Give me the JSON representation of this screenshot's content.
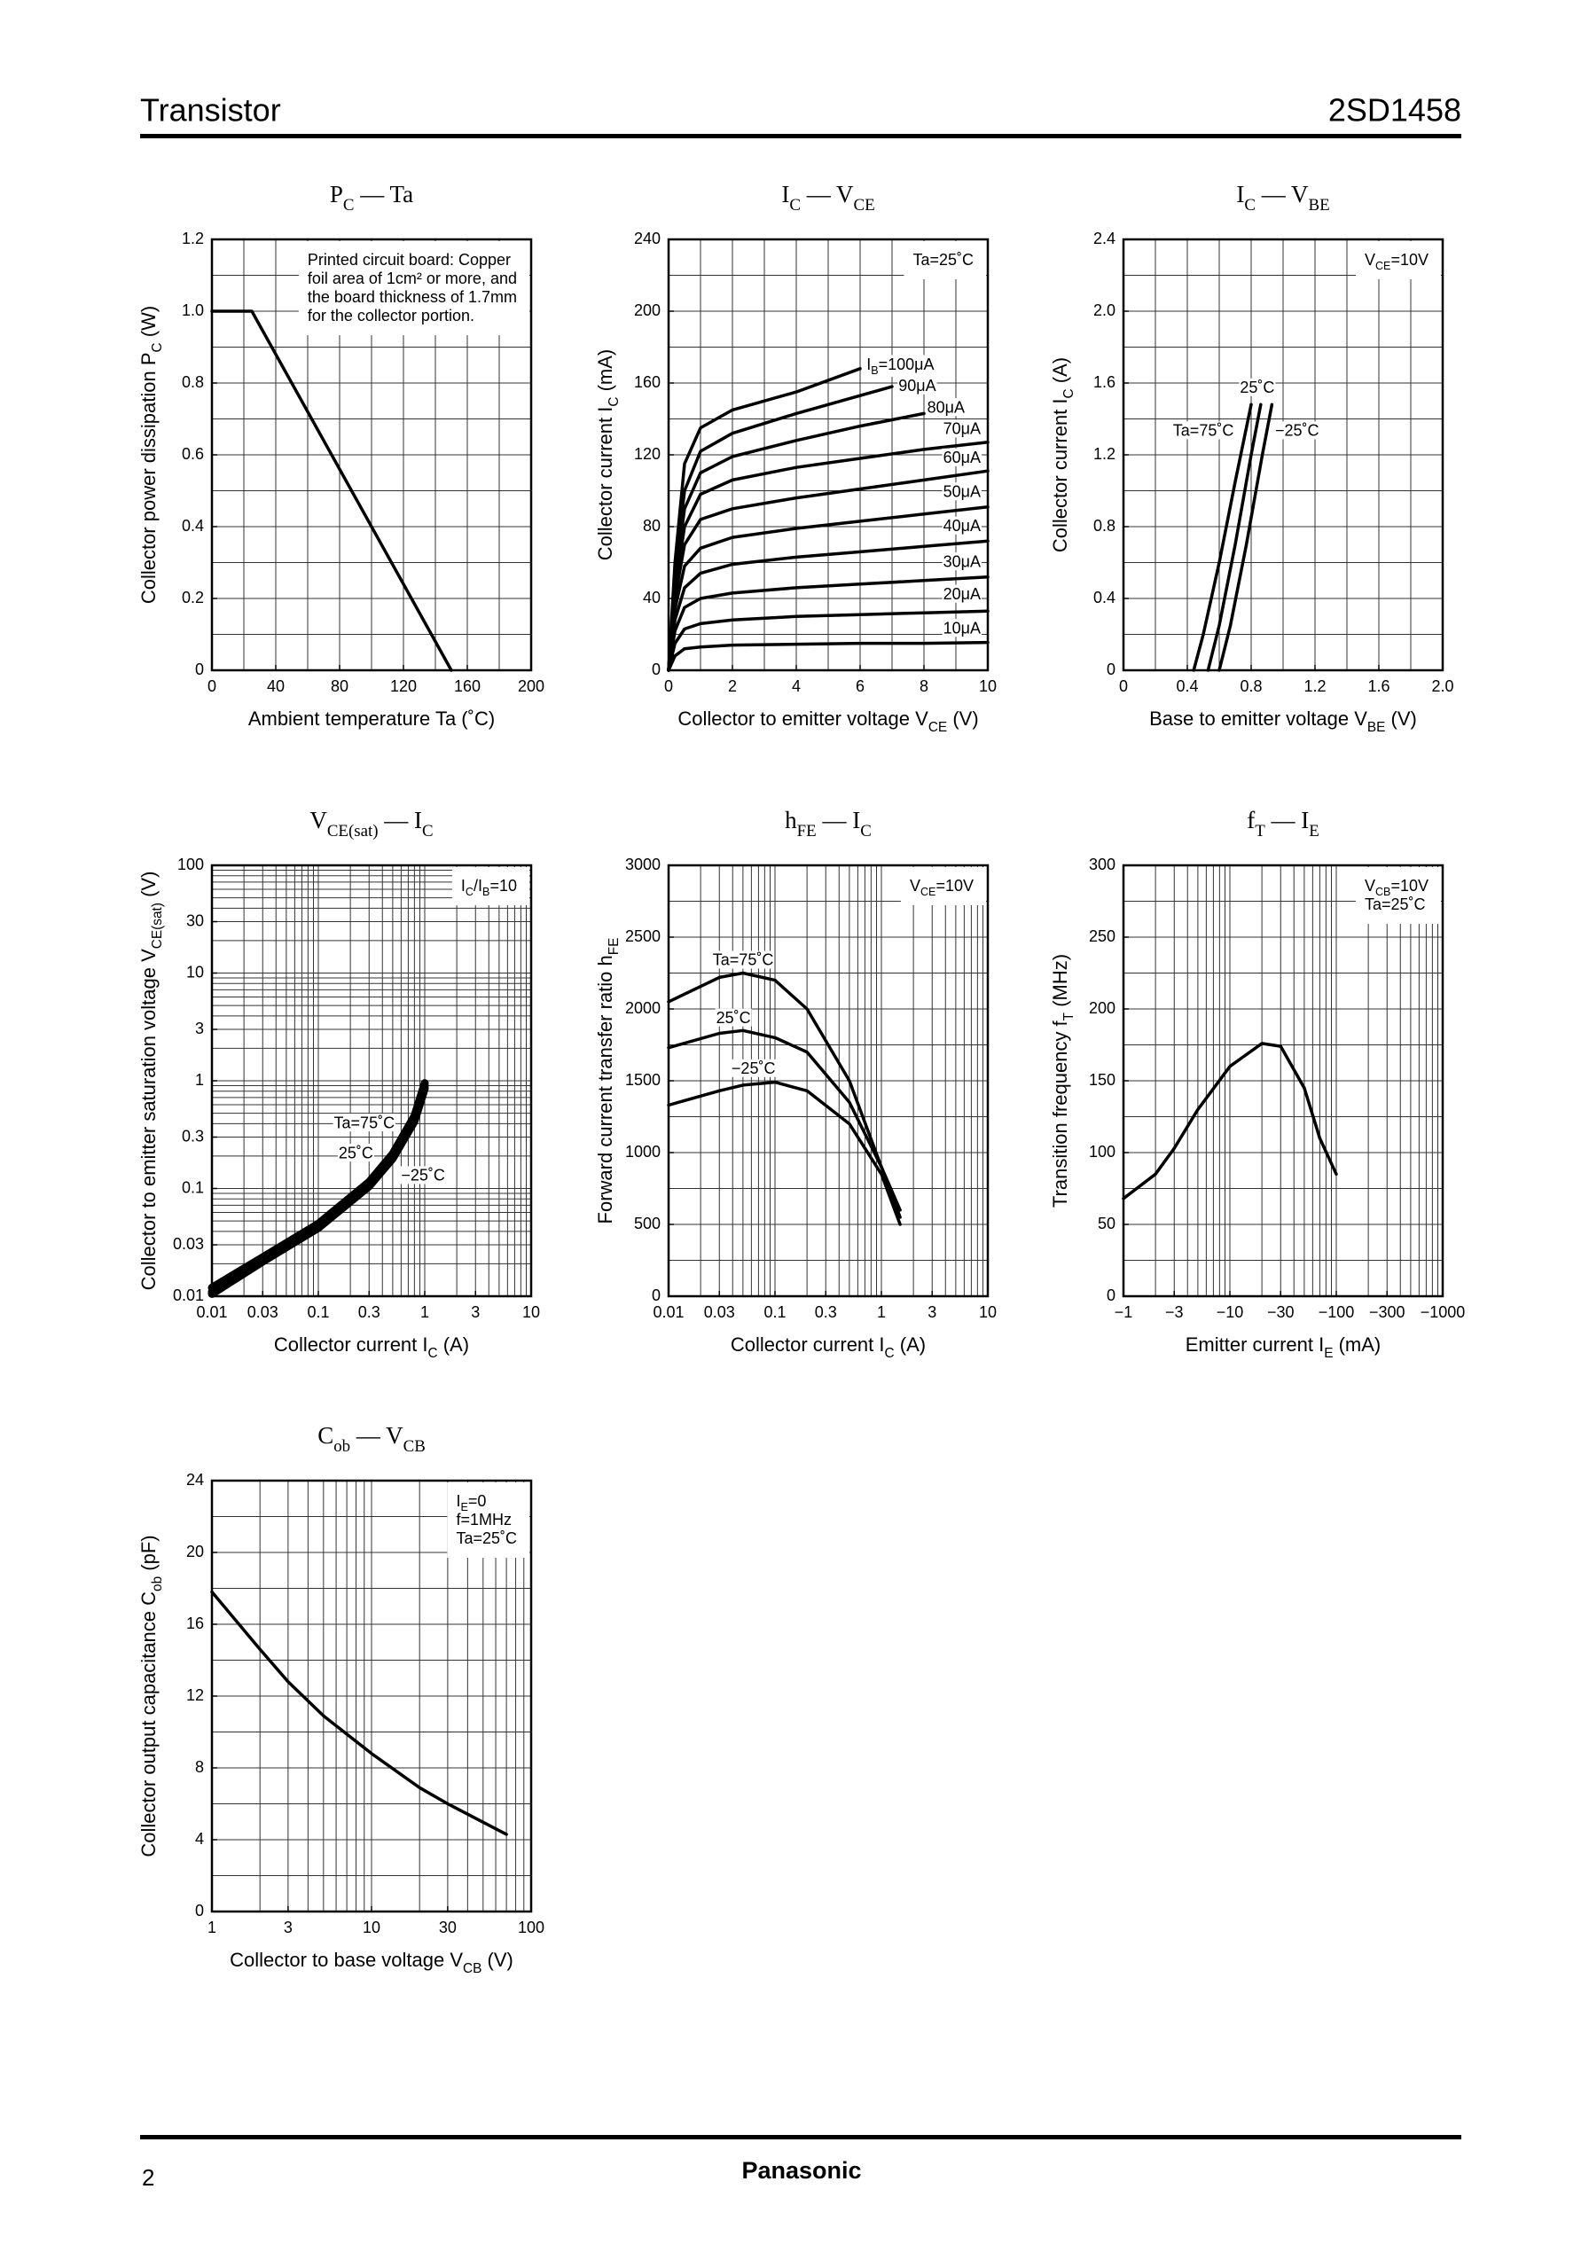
{
  "header": {
    "left": "Transistor",
    "right": "2SD1458"
  },
  "footer": {
    "page": "2",
    "brand": "Panasonic"
  },
  "chart_data": [
    {
      "type": "line",
      "title": [
        "P",
        "C",
        " — Ta"
      ],
      "x_label": [
        "Ambient temperature   Ta   (˚C)"
      ],
      "y_label": [
        "Collector power dissipation   P",
        "C",
        "   (W)"
      ],
      "xlim": [
        0,
        200
      ],
      "xticks": [
        0,
        40,
        80,
        120,
        160,
        200
      ],
      "ylim": [
        0,
        1.2
      ],
      "yticks": [
        0,
        0.2,
        0.4,
        0.6,
        0.8,
        {
          "value": 1,
          "label": "1.0"
        },
        1.2
      ],
      "xgrid": [
        0,
        20,
        40,
        60,
        80,
        100,
        120,
        140,
        160,
        180,
        200
      ],
      "ygrid": [
        0,
        0.1,
        0.2,
        0.3,
        0.4,
        0.5,
        0.6,
        0.7,
        0.8,
        0.9,
        1,
        1.1,
        1.2
      ],
      "note": [
        [
          "Printed circuit board: Copper"
        ],
        [
          "foil area of 1cm² or more, and"
        ],
        [
          "the board thickness of 1.7mm"
        ],
        [
          "for the collector portion."
        ]
      ],
      "series": [
        {
          "color": "#000000",
          "x": [
            0,
            25,
            150
          ],
          "values": [
            1,
            1,
            0
          ]
        }
      ]
    },
    {
      "type": "line",
      "title": [
        "I",
        "C",
        " — V",
        "CE"
      ],
      "x_label": [
        "Collector to emitter voltage   V",
        "CE",
        "   (V)"
      ],
      "y_label": [
        "Collector current   I",
        "C",
        "   (mA)"
      ],
      "xlim": [
        0,
        10
      ],
      "xticks": [
        0,
        2,
        4,
        6,
        8,
        10
      ],
      "ylim": [
        0,
        240
      ],
      "yticks": [
        0,
        40,
        80,
        120,
        160,
        200,
        240
      ],
      "xgrid": [
        0,
        1,
        2,
        3,
        4,
        5,
        6,
        7,
        8,
        9,
        10
      ],
      "ygrid": [
        0,
        20,
        40,
        60,
        80,
        100,
        120,
        140,
        160,
        180,
        200,
        220,
        240
      ],
      "note": [
        [
          "Ta=25˚C"
        ]
      ],
      "series": [
        {
          "name": [
            "I",
            "B",
            "=100μA"
          ],
          "color": "#000000",
          "x": [
            0,
            0.2,
            0.5,
            1,
            2,
            4,
            6
          ],
          "values": [
            0,
            60,
            115,
            135,
            145,
            155,
            168
          ]
        },
        {
          "name": [
            "90μA"
          ],
          "color": "#000000",
          "x": [
            0,
            0.2,
            0.5,
            1,
            2,
            4,
            7
          ],
          "values": [
            0,
            55,
            100,
            122,
            132,
            143,
            158
          ]
        },
        {
          "name": [
            "80μA"
          ],
          "color": "#000000",
          "x": [
            0,
            0.2,
            0.5,
            1,
            2,
            4,
            6,
            8
          ],
          "values": [
            0,
            50,
            90,
            110,
            119,
            128,
            136,
            143
          ]
        },
        {
          "name": [
            "70μA"
          ],
          "color": "#000000",
          "x": [
            0,
            0.2,
            0.5,
            1,
            2,
            4,
            6,
            8,
            10
          ],
          "values": [
            0,
            45,
            80,
            98,
            106,
            113,
            118,
            123,
            127
          ]
        },
        {
          "name": [
            "60μA"
          ],
          "color": "#000000",
          "x": [
            0,
            0.2,
            0.5,
            1,
            2,
            4,
            6,
            8,
            10
          ],
          "values": [
            0,
            40,
            70,
            84,
            90,
            96,
            101,
            106,
            111
          ]
        },
        {
          "name": [
            "50μA"
          ],
          "color": "#000000",
          "x": [
            0,
            0.2,
            0.5,
            1,
            2,
            4,
            6,
            8,
            10
          ],
          "values": [
            0,
            34,
            58,
            68,
            74,
            79,
            83,
            87,
            91
          ]
        },
        {
          "name": [
            "40μA"
          ],
          "color": "#000000",
          "x": [
            0,
            0.2,
            0.5,
            1,
            2,
            4,
            6,
            8,
            10
          ],
          "values": [
            0,
            28,
            46,
            54,
            59,
            63,
            66,
            69,
            72
          ]
        },
        {
          "name": [
            "30μA"
          ],
          "color": "#000000",
          "x": [
            0,
            0.2,
            0.5,
            1,
            2,
            4,
            6,
            8,
            10
          ],
          "values": [
            0,
            22,
            35,
            40,
            43,
            46,
            48,
            50,
            52
          ]
        },
        {
          "name": [
            "20μA"
          ],
          "color": "#000000",
          "x": [
            0,
            0.2,
            0.5,
            1,
            2,
            4,
            6,
            8,
            10
          ],
          "values": [
            0,
            15,
            23,
            26,
            28,
            30,
            31,
            32,
            33
          ]
        },
        {
          "name": [
            "10μA"
          ],
          "color": "#000000",
          "x": [
            0,
            0.2,
            0.5,
            1,
            2,
            4,
            6,
            8,
            10
          ],
          "values": [
            0,
            8,
            12,
            13,
            14,
            14.5,
            15,
            15,
            15.5
          ]
        }
      ]
    },
    {
      "type": "line",
      "title": [
        "I",
        "C",
        " — V",
        "BE"
      ],
      "x_label": [
        "Base to emitter voltage   V",
        "BE",
        "   (V)"
      ],
      "y_label": [
        "Collector current   I",
        "C",
        "   (A)"
      ],
      "xlim": [
        0,
        2
      ],
      "xticks": [
        0,
        0.4,
        0.8,
        1.2,
        1.6,
        {
          "value": 2,
          "label": "2.0"
        }
      ],
      "ylim": [
        0,
        2.4
      ],
      "yticks": [
        0,
        0.4,
        0.8,
        1.2,
        1.6,
        {
          "value": 2,
          "label": "2.0"
        },
        2.4
      ],
      "xgrid": [
        0,
        0.2,
        0.4,
        0.6,
        0.8,
        1,
        1.2,
        1.4,
        1.6,
        1.8,
        2
      ],
      "ygrid": [
        0,
        0.2,
        0.4,
        0.6,
        0.8,
        1,
        1.2,
        1.4,
        1.6,
        1.8,
        2,
        2.2,
        2.4
      ],
      "note": [
        [
          "V",
          "CE",
          "=10V"
        ]
      ],
      "series": [
        {
          "name": [
            "Ta=75˚C"
          ],
          "color": "#000000",
          "x": [
            0.44,
            0.5,
            0.6,
            0.7,
            0.8
          ],
          "values": [
            0,
            0.2,
            0.6,
            1.05,
            1.48
          ]
        },
        {
          "name": [
            "25˚C"
          ],
          "color": "#000000",
          "x": [
            0.53,
            0.6,
            0.7,
            0.8,
            0.86
          ],
          "values": [
            0,
            0.25,
            0.7,
            1.2,
            1.48
          ]
        },
        {
          "name": [
            "−25˚C"
          ],
          "color": "#000000",
          "x": [
            0.6,
            0.67,
            0.77,
            0.87,
            0.93
          ],
          "values": [
            0,
            0.25,
            0.7,
            1.2,
            1.48
          ]
        }
      ]
    },
    {
      "type": "line",
      "title": [
        "V",
        "CE(sat)",
        " — I",
        "C"
      ],
      "x_label": [
        "Collector current   I",
        "C",
        "   (A)"
      ],
      "y_label": [
        "Collector to emitter saturation voltage   V",
        "CE(sat)",
        "   (V)"
      ],
      "xlog": true,
      "ylog": true,
      "xlim": [
        0.01,
        10
      ],
      "xticks": [
        0.01,
        0.03,
        0.1,
        0.3,
        1,
        3,
        10
      ],
      "ylim": [
        0.01,
        100
      ],
      "yticks": [
        0.01,
        0.03,
        0.1,
        0.3,
        1,
        3,
        10,
        30,
        100
      ],
      "xgrid": [
        0.01,
        0.02,
        0.03,
        0.04,
        0.05,
        0.06,
        0.07,
        0.08,
        0.09,
        0.1,
        0.2,
        0.3,
        0.4,
        0.5,
        0.6,
        0.7,
        0.8,
        0.9,
        1,
        2,
        3,
        4,
        5,
        6,
        7,
        8,
        9,
        10
      ],
      "ygrid": [
        0.01,
        0.02,
        0.03,
        0.04,
        0.05,
        0.06,
        0.07,
        0.08,
        0.09,
        0.1,
        0.2,
        0.3,
        0.4,
        0.5,
        0.6,
        0.7,
        0.8,
        0.9,
        1,
        2,
        3,
        4,
        5,
        6,
        7,
        8,
        9,
        10,
        20,
        30,
        40,
        50,
        60,
        70,
        80,
        90,
        100
      ],
      "note": [
        [
          "I",
          "C",
          "/I",
          "B",
          "=10"
        ]
      ],
      "series": [
        {
          "name": [
            "Ta=75˚C"
          ],
          "color": "#000000",
          "x": [
            0.01,
            0.03,
            0.1,
            0.3,
            0.5,
            0.8,
            1
          ],
          "values": [
            0.012,
            0.023,
            0.047,
            0.115,
            0.21,
            0.47,
            0.95
          ]
        },
        {
          "name": [
            "25˚C"
          ],
          "color": "#000000",
          "x": [
            0.01,
            0.03,
            0.1,
            0.3,
            0.5,
            0.8,
            1
          ],
          "values": [
            0.011,
            0.022,
            0.045,
            0.11,
            0.2,
            0.45,
            0.9
          ]
        },
        {
          "name": [
            "−25˚C"
          ],
          "color": "#000000",
          "x": [
            0.01,
            0.03,
            0.1,
            0.3,
            0.5,
            0.8,
            1
          ],
          "values": [
            0.0105,
            0.021,
            0.043,
            0.105,
            0.19,
            0.42,
            0.85
          ]
        }
      ]
    },
    {
      "type": "line",
      "title": [
        "h",
        "FE",
        " — I",
        "C"
      ],
      "x_label": [
        "Collector current   I",
        "C",
        "   (A)"
      ],
      "y_label": [
        "Forward current transfer ratio   h",
        "FE"
      ],
      "xlog": true,
      "xlim": [
        0.01,
        10
      ],
      "xticks": [
        0.01,
        0.03,
        0.1,
        0.3,
        1,
        3,
        10
      ],
      "ylim": [
        0,
        3000
      ],
      "yticks": [
        0,
        500,
        1000,
        1500,
        2000,
        2500,
        3000
      ],
      "xgrid": [
        0.01,
        0.02,
        0.03,
        0.04,
        0.05,
        0.06,
        0.07,
        0.08,
        0.09,
        0.1,
        0.2,
        0.3,
        0.4,
        0.5,
        0.6,
        0.7,
        0.8,
        0.9,
        1,
        2,
        3,
        4,
        5,
        6,
        7,
        8,
        9,
        10
      ],
      "ygrid": [
        0,
        250,
        500,
        750,
        1000,
        1250,
        1500,
        1750,
        2000,
        2250,
        2500,
        2750,
        3000
      ],
      "note": [
        [
          "V",
          "CE",
          "=10V"
        ]
      ],
      "series": [
        {
          "name": [
            "Ta=75˚C"
          ],
          "color": "#000000",
          "x": [
            0.01,
            0.03,
            0.05,
            0.1,
            0.2,
            0.5,
            1,
            1.5
          ],
          "values": [
            2050,
            2220,
            2250,
            2200,
            2000,
            1500,
            900,
            550
          ]
        },
        {
          "name": [
            "25˚C"
          ],
          "color": "#000000",
          "x": [
            0.01,
            0.03,
            0.05,
            0.1,
            0.2,
            0.5,
            1,
            1.5
          ],
          "values": [
            1730,
            1830,
            1850,
            1800,
            1700,
            1350,
            900,
            600
          ]
        },
        {
          "name": [
            "−25˚C"
          ],
          "color": "#000000",
          "x": [
            0.01,
            0.03,
            0.05,
            0.1,
            0.2,
            0.5,
            1,
            1.5
          ],
          "values": [
            1330,
            1430,
            1470,
            1490,
            1430,
            1200,
            850,
            500
          ]
        }
      ]
    },
    {
      "type": "line",
      "title": [
        "f",
        "T",
        " — I",
        "E"
      ],
      "x_label": [
        "Emitter current   I",
        "E",
        "   (mA)"
      ],
      "y_label": [
        "Transition frequency   f",
        "T",
        "   (MHz)"
      ],
      "xlog": true,
      "xlim": [
        -1,
        -1000
      ],
      "xticks": [
        {
          "value": -1,
          "label": "−1"
        },
        {
          "value": -3,
          "label": "−3"
        },
        {
          "value": -10,
          "label": "−10"
        },
        {
          "value": -30,
          "label": "−30"
        },
        {
          "value": -100,
          "label": "−100"
        },
        {
          "value": -300,
          "label": "−300"
        },
        {
          "value": -1000,
          "label": "−1000"
        }
      ],
      "ylim": [
        0,
        300
      ],
      "yticks": [
        0,
        50,
        100,
        150,
        200,
        250,
        300
      ],
      "xgrid": [
        -1,
        -2,
        -3,
        -4,
        -5,
        -6,
        -7,
        -8,
        -9,
        -10,
        -20,
        -30,
        -40,
        -50,
        -60,
        -70,
        -80,
        -90,
        -100,
        -200,
        -300,
        -400,
        -500,
        -600,
        -700,
        -800,
        -900,
        -1000
      ],
      "ygrid": [
        0,
        25,
        50,
        75,
        100,
        125,
        150,
        175,
        200,
        225,
        250,
        275,
        300
      ],
      "note": [
        [
          "V",
          "CB",
          "=10V"
        ],
        [
          "Ta=25˚C"
        ]
      ],
      "series": [
        {
          "color": "#000000",
          "x": [
            -1,
            -2,
            -3,
            -5,
            -10,
            -20,
            -30,
            -50,
            -70,
            -100
          ],
          "values": [
            68,
            85,
            103,
            130,
            160,
            176,
            174,
            145,
            110,
            85
          ]
        }
      ]
    },
    {
      "type": "line",
      "title": [
        "C",
        "ob",
        " — V",
        "CB"
      ],
      "x_label": [
        "Collector to base voltage   V",
        "CB",
        "   (V)"
      ],
      "y_label": [
        "Collector output capacitance   C",
        "ob",
        "   (pF)"
      ],
      "xlog": true,
      "xlim": [
        1,
        100
      ],
      "xticks": [
        1,
        3,
        10,
        30,
        100
      ],
      "ylim": [
        0,
        24
      ],
      "yticks": [
        0,
        4,
        8,
        12,
        16,
        20,
        24
      ],
      "xgrid": [
        1,
        2,
        3,
        4,
        5,
        6,
        7,
        8,
        9,
        10,
        20,
        30,
        40,
        50,
        60,
        70,
        80,
        90,
        100
      ],
      "ygrid": [
        0,
        2,
        4,
        6,
        8,
        10,
        12,
        14,
        16,
        18,
        20,
        22,
        24
      ],
      "note": [
        [
          "I",
          "E",
          "=0"
        ],
        [
          "f=1MHz"
        ],
        [
          "Ta=25˚C"
        ]
      ],
      "series": [
        {
          "color": "#000000",
          "x": [
            1,
            2,
            3,
            5,
            10,
            20,
            30,
            70
          ],
          "values": [
            17.8,
            14.6,
            12.8,
            10.9,
            8.8,
            6.9,
            6,
            4.3
          ]
        }
      ]
    }
  ]
}
